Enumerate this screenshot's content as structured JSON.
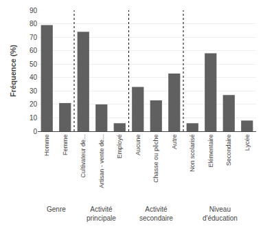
{
  "chart_data": {
    "type": "bar",
    "categories": [
      "Homme",
      "Femme",
      "Cultivateur de...",
      "Artisan - vente de...",
      "Employé",
      "Aucune",
      "Chasse ou pêche",
      "Autre",
      "Non scolarisé",
      "Elémentaire",
      "Secondaire",
      "Lycée"
    ],
    "values": [
      79,
      21,
      74,
      20,
      6,
      33,
      23,
      43,
      6,
      58,
      27,
      8
    ],
    "color": "#606060",
    "ylabel": "Fréquence (%)",
    "ylim": [
      0,
      90
    ],
    "yticks": [
      0,
      10,
      20,
      30,
      40,
      50,
      60,
      70,
      80,
      90
    ],
    "grid": true,
    "groups": [
      {
        "label": "Genre",
        "count": 2
      },
      {
        "label": "Activité\nprincipale",
        "count": 3
      },
      {
        "label": "Activité\nsecondaire",
        "count": 3
      },
      {
        "label": "Niveau\nd'éducation",
        "count": 4
      }
    ]
  }
}
